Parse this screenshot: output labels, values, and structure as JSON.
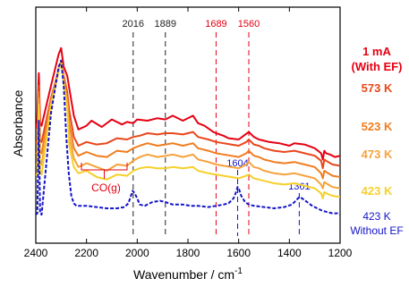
{
  "chart_data": {
    "type": "line",
    "xlabel": "Wavenumber / cm",
    "xlabel_sup": "-1",
    "ylabel": "Absorbance",
    "xlim": [
      2400,
      1200
    ],
    "x_reversed": true,
    "xticks": [
      2400,
      2200,
      2000,
      1800,
      1600,
      1400,
      1200
    ],
    "yticks_shown": false,
    "grid": false,
    "series": [
      {
        "name": "1 mA (With EF)",
        "label_lines": [
          "1 mA",
          "(With EF)"
        ],
        "color": "#e60012",
        "dashed": false,
        "x": [
          2400,
          2395,
          2388,
          2383,
          2377,
          2340,
          2310,
          2300,
          2290,
          2276,
          2268,
          2250,
          2232,
          2200,
          2180,
          2140,
          2100,
          2060,
          2040,
          2016,
          2000,
          1960,
          1920,
          1889,
          1860,
          1820,
          1780,
          1760,
          1735,
          1700,
          1689,
          1660,
          1640,
          1600,
          1580,
          1560,
          1540,
          1520,
          1500,
          1480,
          1440,
          1400,
          1380,
          1340,
          1300,
          1275,
          1268,
          1262,
          1255,
          1240,
          1220,
          1200
        ],
        "y": [
          0.56,
          0.6,
          1.0,
          0.6,
          0.58,
          0.9,
          1.15,
          1.2,
          1.05,
          0.98,
          0.88,
          0.66,
          0.55,
          0.58,
          0.62,
          0.57,
          0.63,
          0.59,
          0.61,
          0.6,
          0.63,
          0.62,
          0.64,
          0.63,
          0.66,
          0.62,
          0.66,
          0.6,
          0.58,
          0.53,
          0.52,
          0.5,
          0.48,
          0.47,
          0.5,
          0.53,
          0.49,
          0.47,
          0.46,
          0.45,
          0.44,
          0.42,
          0.44,
          0.43,
          0.4,
          0.36,
          0.31,
          0.38,
          0.36,
          0.35,
          0.33,
          0.34
        ]
      },
      {
        "name": "573 K",
        "label_lines": [
          "573 K"
        ],
        "color": "#e8471b",
        "dashed": false,
        "x": [
          2400,
          2394,
          2388,
          2383,
          2377,
          2340,
          2300,
          2290,
          2276,
          2268,
          2250,
          2232,
          2200,
          2160,
          2120,
          2080,
          2040,
          2016,
          1990,
          1960,
          1920,
          1889,
          1860,
          1820,
          1780,
          1760,
          1720,
          1689,
          1660,
          1630,
          1600,
          1570,
          1560,
          1540,
          1520,
          1500,
          1460,
          1420,
          1380,
          1340,
          1300,
          1275,
          1268,
          1262,
          1255,
          1230,
          1200
        ],
        "y": [
          0.44,
          0.46,
          0.9,
          0.46,
          0.45,
          0.8,
          1.1,
          0.98,
          0.85,
          0.7,
          0.49,
          0.42,
          0.45,
          0.43,
          0.44,
          0.48,
          0.47,
          0.49,
          0.5,
          0.52,
          0.51,
          0.52,
          0.52,
          0.51,
          0.53,
          0.49,
          0.47,
          0.45,
          0.44,
          0.43,
          0.42,
          0.45,
          0.47,
          0.43,
          0.42,
          0.4,
          0.38,
          0.37,
          0.38,
          0.36,
          0.34,
          0.3,
          0.24,
          0.31,
          0.3,
          0.27,
          0.26
        ]
      },
      {
        "name": "523 K",
        "label_lines": [
          "523 K"
        ],
        "color": "#f07d1e",
        "dashed": false,
        "x": [
          2400,
          2394,
          2388,
          2383,
          2377,
          2340,
          2300,
          2290,
          2276,
          2268,
          2250,
          2232,
          2200,
          2160,
          2120,
          2080,
          2040,
          2016,
          1990,
          1960,
          1920,
          1889,
          1860,
          1820,
          1780,
          1760,
          1720,
          1689,
          1660,
          1630,
          1600,
          1570,
          1560,
          1540,
          1520,
          1500,
          1460,
          1420,
          1380,
          1340,
          1300,
          1275,
          1268,
          1262,
          1255,
          1230,
          1200
        ],
        "y": [
          0.35,
          0.37,
          0.85,
          0.37,
          0.36,
          0.78,
          1.1,
          0.96,
          0.8,
          0.6,
          0.4,
          0.34,
          0.37,
          0.34,
          0.33,
          0.38,
          0.37,
          0.4,
          0.42,
          0.44,
          0.42,
          0.43,
          0.44,
          0.42,
          0.44,
          0.4,
          0.38,
          0.36,
          0.35,
          0.34,
          0.33,
          0.36,
          0.38,
          0.34,
          0.33,
          0.31,
          0.29,
          0.28,
          0.29,
          0.27,
          0.25,
          0.2,
          0.16,
          0.22,
          0.21,
          0.18,
          0.17
        ]
      },
      {
        "name": "473 K",
        "label_lines": [
          "473 K"
        ],
        "color": "#f6a23a",
        "dashed": false,
        "x": [
          2400,
          2394,
          2388,
          2383,
          2377,
          2340,
          2300,
          2290,
          2276,
          2268,
          2250,
          2232,
          2200,
          2160,
          2120,
          2080,
          2040,
          2016,
          1990,
          1960,
          1920,
          1889,
          1860,
          1820,
          1780,
          1760,
          1720,
          1689,
          1660,
          1630,
          1600,
          1570,
          1560,
          1540,
          1520,
          1500,
          1460,
          1420,
          1380,
          1340,
          1300,
          1275,
          1268,
          1262,
          1255,
          1230,
          1200
        ],
        "y": [
          0.26,
          0.28,
          0.8,
          0.28,
          0.27,
          0.76,
          1.1,
          0.94,
          0.76,
          0.5,
          0.32,
          0.25,
          0.28,
          0.25,
          0.22,
          0.27,
          0.26,
          0.3,
          0.33,
          0.35,
          0.33,
          0.34,
          0.35,
          0.33,
          0.35,
          0.31,
          0.29,
          0.27,
          0.26,
          0.25,
          0.24,
          0.27,
          0.29,
          0.25,
          0.24,
          0.22,
          0.2,
          0.19,
          0.2,
          0.18,
          0.16,
          0.11,
          0.08,
          0.13,
          0.12,
          0.09,
          0.08
        ]
      },
      {
        "name": "423 K",
        "label_lines": [
          "423 K"
        ],
        "color": "#f6d02a",
        "dashed": false,
        "x": [
          2400,
          2394,
          2388,
          2383,
          2377,
          2340,
          2300,
          2290,
          2276,
          2268,
          2250,
          2232,
          2200,
          2160,
          2120,
          2080,
          2040,
          2016,
          1990,
          1960,
          1920,
          1889,
          1860,
          1820,
          1780,
          1760,
          1720,
          1689,
          1660,
          1630,
          1600,
          1570,
          1560,
          1540,
          1520,
          1500,
          1460,
          1420,
          1380,
          1340,
          1300,
          1275,
          1268,
          1262,
          1255,
          1230,
          1200
        ],
        "y": [
          0.18,
          0.2,
          0.75,
          0.2,
          0.19,
          0.74,
          1.1,
          0.92,
          0.72,
          0.42,
          0.25,
          0.2,
          0.22,
          0.17,
          0.15,
          0.19,
          0.18,
          0.22,
          0.24,
          0.25,
          0.24,
          0.24,
          0.25,
          0.24,
          0.25,
          0.22,
          0.2,
          0.19,
          0.18,
          0.17,
          0.16,
          0.18,
          0.19,
          0.16,
          0.15,
          0.14,
          0.12,
          0.11,
          0.12,
          0.1,
          0.08,
          0.04,
          0.0,
          0.05,
          0.04,
          0.02,
          0.01
        ]
      },
      {
        "name": "423 K Without EF",
        "label_lines": [
          "423 K",
          "Without EF"
        ],
        "color": "#1414c8",
        "dashed": true,
        "x": [
          2400,
          2394,
          2388,
          2383,
          2377,
          2340,
          2310,
          2300,
          2290,
          2280,
          2270,
          2260,
          2250,
          2240,
          2200,
          2160,
          2120,
          2080,
          2050,
          2035,
          2025,
          2018,
          2010,
          2000,
          1990,
          1970,
          1940,
          1910,
          1889,
          1860,
          1820,
          1790,
          1760,
          1720,
          1689,
          1660,
          1640,
          1620,
          1610,
          1604,
          1598,
          1590,
          1575,
          1560,
          1540,
          1500,
          1460,
          1420,
          1390,
          1375,
          1361,
          1350,
          1330,
          1310,
          1290,
          1270,
          1250,
          1230,
          1210,
          1200
        ],
        "y": [
          -0.13,
          -0.12,
          0.62,
          -0.12,
          -0.13,
          0.68,
          1.05,
          1.1,
          0.9,
          0.5,
          0.2,
          0.02,
          -0.04,
          -0.06,
          -0.06,
          -0.07,
          -0.08,
          -0.08,
          -0.07,
          -0.04,
          0.02,
          0.06,
          0.04,
          0.0,
          -0.05,
          -0.06,
          -0.03,
          -0.02,
          -0.03,
          -0.05,
          -0.05,
          -0.06,
          -0.06,
          -0.07,
          -0.06,
          -0.05,
          -0.04,
          0.0,
          0.05,
          0.09,
          0.07,
          0.02,
          -0.03,
          -0.05,
          -0.06,
          -0.07,
          -0.08,
          -0.07,
          -0.05,
          -0.02,
          0.01,
          0.0,
          -0.03,
          -0.06,
          -0.08,
          -0.1,
          -0.11,
          -0.12,
          -0.12,
          -0.13
        ]
      }
    ],
    "reference_lines": [
      {
        "x": 2016,
        "label": "2016",
        "color": "#222222",
        "group": "with_ef"
      },
      {
        "x": 1889,
        "label": "1889",
        "color": "#222222",
        "group": "with_ef"
      },
      {
        "x": 1689,
        "label": "1689",
        "color": "#e60012",
        "group": "with_ef"
      },
      {
        "x": 1560,
        "label": "1560",
        "color": "#e60012",
        "group": "with_ef"
      },
      {
        "x": 1604,
        "label": "1604",
        "color": "#1414c8",
        "group": "without_ef"
      },
      {
        "x": 1361,
        "label": "1361",
        "color": "#1414c8",
        "group": "without_ef"
      }
    ],
    "annotations": [
      {
        "label": "CO(g)",
        "x_range": [
          2220,
          2040
        ],
        "color": "#e60012"
      }
    ]
  }
}
